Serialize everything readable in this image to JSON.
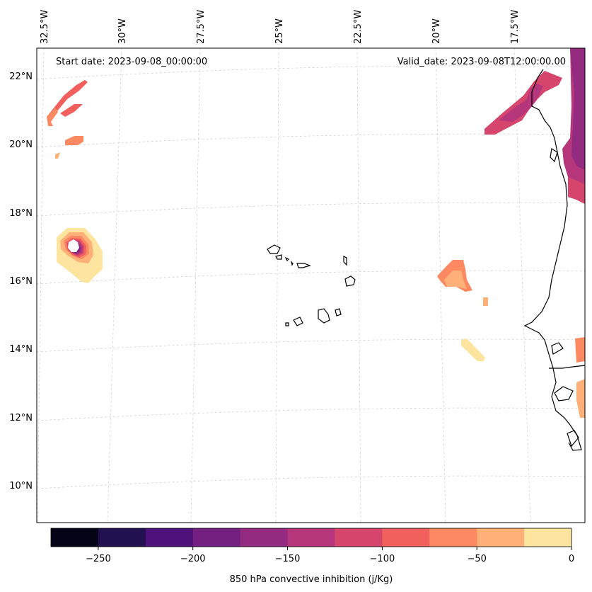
{
  "header": {
    "start_date": "Start date: 2023-09-08_00:00:00",
    "valid_date": "Valid_date: 2023-09-08T12:00:00.00"
  },
  "axes": {
    "lon_labels": [
      "32.5°W",
      "30°W",
      "27.5°W",
      "25°W",
      "22.5°W",
      "20°W",
      "17.5°W"
    ],
    "lat_labels": [
      "22°N",
      "20°N",
      "18°N",
      "16°N",
      "14°N",
      "12°N",
      "10°N"
    ]
  },
  "colorbar": {
    "label": "850 hPa convective inhibition (j/Kg)",
    "ticks": [
      "−250",
      "−200",
      "−150",
      "−100",
      "−50",
      "0"
    ],
    "colors": [
      "#050417",
      "#221150",
      "#4f127b",
      "#721f81",
      "#932b80",
      "#b5367a",
      "#d6456c",
      "#f1605d",
      "#fc8961",
      "#feb078",
      "#fde5a0"
    ]
  }
}
